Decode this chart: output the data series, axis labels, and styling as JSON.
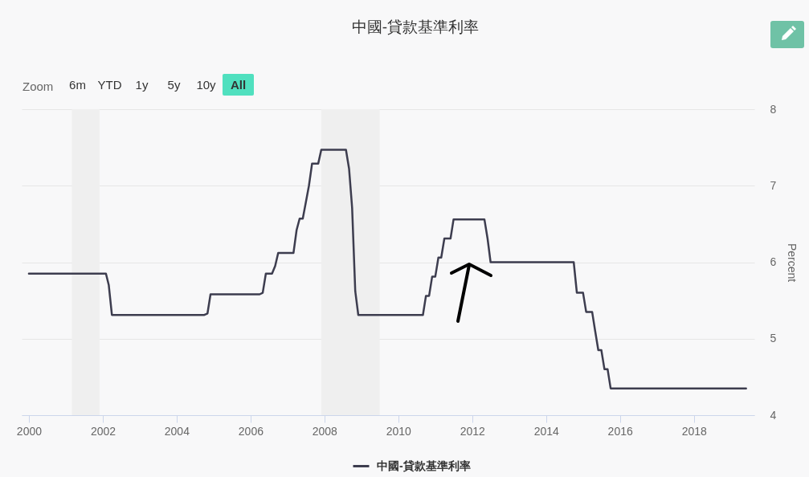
{
  "chart_data": {
    "type": "line",
    "title": "中國-貸款基準利率",
    "ylabel": "Percent",
    "annotations": [
      "Zoom",
      "6m",
      "YTD",
      "1y",
      "5y",
      "10y",
      "All"
    ],
    "x": [
      "2000-01",
      "2002-02",
      "2002-03",
      "2002-04",
      "2004-10",
      "2004-11",
      "2004-12",
      "2006-04",
      "2006-05",
      "2006-06",
      "2006-08",
      "2006-09",
      "2006-10",
      "2007-03",
      "2007-04",
      "2007-05",
      "2007-06",
      "2007-07",
      "2007-08",
      "2007-09",
      "2007-11",
      "2007-12",
      "2008-08",
      "2008-09",
      "2008-10",
      "2008-11",
      "2008-12",
      "2010-09",
      "2010-10",
      "2010-11",
      "2010-12",
      "2011-01",
      "2011-02",
      "2011-03",
      "2011-04",
      "2011-06",
      "2011-07",
      "2012-05",
      "2012-06",
      "2012-07",
      "2014-10",
      "2014-11",
      "2015-01",
      "2015-02",
      "2015-04",
      "2015-05",
      "2015-06",
      "2015-07",
      "2015-08",
      "2015-09",
      "2015-10",
      "2019-06"
    ],
    "series": [
      {
        "name": "中國-貸款基準利率",
        "color": "#3d3d4f",
        "values": [
          5.85,
          5.85,
          5.7,
          5.31,
          5.31,
          5.33,
          5.58,
          5.58,
          5.6,
          5.85,
          5.85,
          5.95,
          6.12,
          6.12,
          6.42,
          6.57,
          6.57,
          6.78,
          7.0,
          7.29,
          7.29,
          7.47,
          7.47,
          7.22,
          6.71,
          5.62,
          5.31,
          5.31,
          5.56,
          5.56,
          5.81,
          5.81,
          6.06,
          6.06,
          6.31,
          6.31,
          6.56,
          6.56,
          6.31,
          6.0,
          6.0,
          5.6,
          5.6,
          5.35,
          5.35,
          5.1,
          4.85,
          4.85,
          4.6,
          4.6,
          4.35,
          4.35
        ]
      }
    ],
    "xlim": [
      "1999-10-22",
      "2019-08-22"
    ],
    "xticks": [
      "2000",
      "2002",
      "2004",
      "2006",
      "2008",
      "2010",
      "2012",
      "2014",
      "2016",
      "2018"
    ],
    "ylim": [
      4,
      8
    ],
    "yticks": [
      4,
      5,
      6,
      7,
      8
    ],
    "grid": "y",
    "legend": "bottom",
    "bands": [
      {
        "axis": "x",
        "from": "2001-03",
        "to": "2001-11-30",
        "color": "#efefef"
      },
      {
        "axis": "x",
        "from": "2007-12",
        "to": "2009-06-30",
        "color": "#efefef"
      }
    ]
  }
}
